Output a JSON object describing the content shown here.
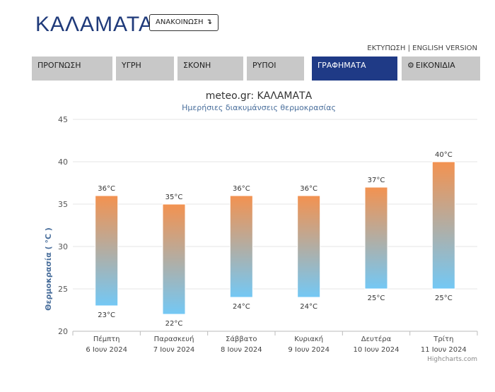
{
  "header": {
    "city": "ΚΑΛΑΜΑΤΑ",
    "announce_label": "ΑΝΑΚΟΙΝΩΣΗ",
    "announce_arrow": "↴",
    "print_link": "ΕΚΤΥΠΩΣΗ",
    "separator": "|",
    "english_link": "ENGLISH VERSION"
  },
  "tabs": [
    {
      "label": "ΠΡΟΓΝΩΣΗ",
      "active": false
    },
    {
      "label": "ΥΓΡΗ",
      "active": false
    },
    {
      "label": "ΣΚΟΝΗ",
      "active": false
    },
    {
      "label": "ΡΥΠΟΙ",
      "active": false
    },
    {
      "label": "ΓΡΑΦΗΜΑΤΑ",
      "active": true
    },
    {
      "label": "ΕΙΚΟΝΙΔΙΑ",
      "active": false,
      "icon": "gear-icon"
    }
  ],
  "colors": {
    "title": "#1f3a7a",
    "tab_active": "#1f3a86",
    "tab_inactive": "#c8c8c8",
    "bar_top": "#f39250",
    "bar_bottom": "#73c8f5",
    "axis_title": "#4a6f9c"
  },
  "chart_data": {
    "type": "columnrange",
    "title": "meteo.gr: ΚΑΛΑΜΑΤΑ",
    "subtitle": "Ημερήσιες διακυμάνσεις θερμοκρασίας",
    "ylabel": "Θερμοκρασία ( °C )",
    "xlabel": "",
    "ylim": [
      20,
      45
    ],
    "yticks": [
      20,
      25,
      30,
      35,
      40,
      45
    ],
    "categories": [
      {
        "day": "Πέμπτη",
        "date": "6 Ιουν 2024"
      },
      {
        "day": "Παρασκευή",
        "date": "7 Ιουν 2024"
      },
      {
        "day": "Σάββατο",
        "date": "8 Ιουν 2024"
      },
      {
        "day": "Κυριακή",
        "date": "9 Ιουν 2024"
      },
      {
        "day": "Δευτέρα",
        "date": "10 Ιουν 2024"
      },
      {
        "day": "Τρίτη",
        "date": "11 Ιουν 2024"
      }
    ],
    "low": [
      23,
      22,
      24,
      24,
      25,
      25
    ],
    "high": [
      36,
      35,
      36,
      36,
      37,
      40
    ],
    "unit_suffix": "°C",
    "grid": true,
    "legend": "none",
    "credits": "Highcharts.com"
  }
}
